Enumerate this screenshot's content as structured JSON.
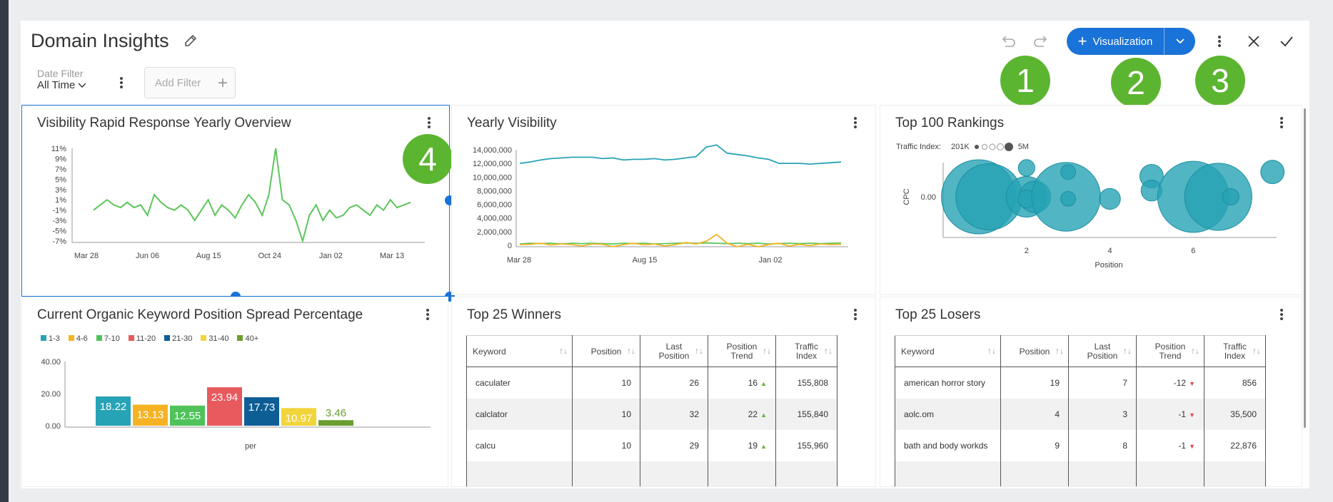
{
  "header": {
    "title": "Domain Insights",
    "visualization_label": "Visualization",
    "badges": [
      "1",
      "2",
      "3",
      "4"
    ]
  },
  "filters": {
    "date_filter_label": "Date Filter",
    "date_filter_value": "All Time",
    "add_filter_label": "Add Filter"
  },
  "cards": {
    "visibility_overview": {
      "title": "Visibility Rapid Response Yearly Overview"
    },
    "yearly_visibility": {
      "title": "Yearly Visibility"
    },
    "top100": {
      "title": "Top 100 Rankings",
      "traffic_index_label": "Traffic Index:",
      "min_label": "201K",
      "max_label": "5M"
    },
    "spread": {
      "title": "Current Organic Keyword Position Spread Percentage"
    },
    "winners": {
      "title": "Top 25 Winners"
    },
    "losers": {
      "title": "Top 25 Losers"
    }
  },
  "tables": {
    "columns": [
      "Keyword",
      "Position",
      "Last Position",
      "Position Trend",
      "Traffic Index"
    ],
    "winners": [
      {
        "keyword": "caculater",
        "position": "10",
        "last": "26",
        "trend": "16",
        "traffic": "155,808"
      },
      {
        "keyword": "calclator",
        "position": "10",
        "last": "32",
        "trend": "22",
        "traffic": "155,840"
      },
      {
        "keyword": "calcu",
        "position": "10",
        "last": "29",
        "trend": "19",
        "traffic": "155,960"
      }
    ],
    "losers": [
      {
        "keyword": "american horror story",
        "position": "19",
        "last": "7",
        "trend": "-12",
        "traffic": "856"
      },
      {
        "keyword": "aolc.om",
        "position": "4",
        "last": "3",
        "trend": "-1",
        "traffic": "35,500"
      },
      {
        "keyword": "bath and body workds",
        "position": "9",
        "last": "8",
        "trend": "-1",
        "traffic": "22,876"
      }
    ]
  },
  "colors": {
    "accent": "#1a73d8",
    "badge": "#5cb530",
    "teal": "#26a3b5",
    "line_green": "#5cc55a",
    "line_orange": "#f5b324",
    "trend_up": "#5cb530",
    "trend_down": "#e84646"
  },
  "chart_data": [
    {
      "type": "line",
      "title": "Visibility Rapid Response Yearly Overview",
      "x_ticks": [
        "Mar 28",
        "Jun 06",
        "Aug 15",
        "Oct 24",
        "Jan 02",
        "Mar 13"
      ],
      "y_ticks": [
        "11%",
        "9%",
        "7%",
        "5%",
        "3%",
        "1%",
        "-1%",
        "-3%",
        "-5%",
        "-7%"
      ],
      "ylim": [
        -7,
        11
      ],
      "series": [
        {
          "values": [
            -1,
            0,
            1,
            0,
            -0.5,
            0.5,
            -0.5,
            0,
            -2,
            2,
            0.5,
            -0.5,
            -1,
            0,
            -1,
            -3,
            -1,
            1,
            -2,
            0,
            -1,
            -2.5,
            0,
            2,
            0.5,
            -2,
            2,
            11,
            1,
            0,
            -3,
            -7,
            -2,
            0,
            -3,
            -1,
            -2.5,
            -2,
            -0.5,
            0,
            -1,
            -2,
            0,
            -1,
            1,
            -0.5,
            0,
            0.5
          ]
        }
      ],
      "grid": false
    },
    {
      "type": "line",
      "title": "Yearly Visibility",
      "x_ticks": [
        "Mar 28",
        "Aug 15",
        "Jan 02"
      ],
      "y_ticks": [
        "14,000,000",
        "12,000,000",
        "10,000,000",
        "8,000,000",
        "6,000,000",
        "4,000,000",
        "2,000,000",
        "0"
      ],
      "ylim": [
        0,
        14000000
      ],
      "series": [
        {
          "color": "#26a3b5",
          "values": [
            12000000,
            12200000,
            12500000,
            12700000,
            12800000,
            12900000,
            12900000,
            12900000,
            12700000,
            12800000,
            12500000,
            12600000,
            12600000,
            12700000,
            12500000,
            12600000,
            12800000,
            13000000,
            14400000,
            14700000,
            13500000,
            13300000,
            13100000,
            12800000,
            12600000,
            12000000,
            12000000,
            12000000,
            11900000,
            12000000,
            12100000,
            12200000
          ]
        },
        {
          "color": "#5cc55a",
          "values": [
            200000,
            300000,
            250000,
            300000,
            200000,
            300000,
            250000,
            300000,
            250000,
            200000,
            300000,
            250000,
            300000,
            200000,
            250000,
            300000,
            350000,
            300000,
            350000,
            300000,
            250000,
            300000,
            250000,
            300000,
            200000,
            250000,
            300000,
            250000,
            300000,
            250000,
            300000,
            350000
          ]
        },
        {
          "color": "#f5b324",
          "values": [
            100000,
            150000,
            300000,
            50000,
            200000,
            100000,
            -100000,
            200000,
            150000,
            -200000,
            100000,
            300000,
            50000,
            200000,
            -100000,
            100000,
            400000,
            200000,
            600000,
            1600000,
            300000,
            -300000,
            150000,
            -200000,
            100000,
            300000,
            -100000,
            150000,
            -50000,
            200000,
            100000,
            150000
          ]
        }
      ],
      "grid": false
    },
    {
      "type": "scatter",
      "title": "Top 100 Rankings",
      "xlabel": "Position",
      "ylabel": "CPC",
      "x_ticks": [
        "2",
        "4",
        "6"
      ],
      "y_ticks": [
        "0.00"
      ],
      "xlim": [
        0,
        8
      ],
      "points": [
        {
          "x": 0.85,
          "y": 0.0,
          "size": 5000000
        },
        {
          "x": 1.1,
          "y": 0.0,
          "size": 4000000
        },
        {
          "x": 2.0,
          "y": 0.0,
          "size": 1500000
        },
        {
          "x": 2.2,
          "y": 0.0,
          "size": 900000
        },
        {
          "x": 2.0,
          "y": 0.7,
          "size": 250000
        },
        {
          "x": 2.0,
          "y": -0.05,
          "size": 300000
        },
        {
          "x": 2.95,
          "y": 0.0,
          "size": 4300000
        },
        {
          "x": 3.0,
          "y": 0.6,
          "size": 201000
        },
        {
          "x": 3.0,
          "y": -0.05,
          "size": 201000
        },
        {
          "x": 4.0,
          "y": -0.05,
          "size": 400000
        },
        {
          "x": 5.0,
          "y": 0.5,
          "size": 500000
        },
        {
          "x": 5.0,
          "y": 0.15,
          "size": 400000
        },
        {
          "x": 6.0,
          "y": 0.0,
          "size": 4600000
        },
        {
          "x": 6.6,
          "y": 0.0,
          "size": 4100000
        },
        {
          "x": 6.9,
          "y": 0.0,
          "size": 250000
        },
        {
          "x": 7.9,
          "y": 0.6,
          "size": 500000
        }
      ]
    },
    {
      "type": "bar",
      "title": "Current Organic Keyword Position Spread Percentage",
      "xlabel": "per",
      "ylim": [
        0,
        40
      ],
      "y_ticks": [
        "40.00",
        "20.00",
        "0.00"
      ],
      "series": [
        {
          "name": "1-3",
          "value": 18.22,
          "label": "18.22",
          "color": "#26a3b5"
        },
        {
          "name": "4-6",
          "value": 13.13,
          "label": "13.13",
          "color": "#f5b324"
        },
        {
          "name": "7-10",
          "value": 12.55,
          "label": "12.55",
          "color": "#4fc35a"
        },
        {
          "name": "11-20",
          "value": 23.94,
          "label": "23.94",
          "color": "#e85a5e"
        },
        {
          "name": "21-30",
          "value": 17.73,
          "label": "17.73",
          "color": "#0e5e96"
        },
        {
          "name": "31-40",
          "value": 10.97,
          "label": "10.97",
          "color": "#f2d43b"
        },
        {
          "name": "40+",
          "value": 3.46,
          "label": "3.46",
          "color": "#6a9e2f"
        }
      ]
    }
  ]
}
